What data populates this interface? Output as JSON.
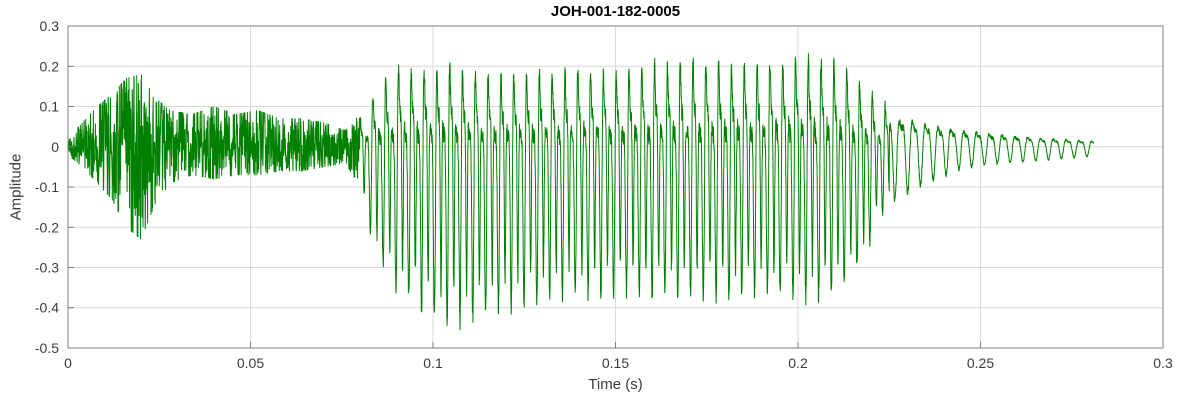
{
  "chart_data": {
    "type": "line",
    "title": "JOH-001-182-0005",
    "xlabel": "Time (s)",
    "ylabel": "Amplitude",
    "xlim": [
      0,
      0.3
    ],
    "ylim": [
      -0.5,
      0.3
    ],
    "x_ticks": [
      0,
      0.05,
      0.1,
      0.15,
      0.2,
      0.25,
      0.3
    ],
    "x_tick_labels": [
      "0",
      "0.05",
      "0.1",
      "0.15",
      "0.2",
      "0.25",
      "0.3"
    ],
    "y_ticks": [
      -0.5,
      -0.4,
      -0.3,
      -0.2,
      -0.1,
      0,
      0.1,
      0.2,
      0.3
    ],
    "y_tick_labels": [
      "-0.5",
      "-0.4",
      "-0.3",
      "-0.2",
      "-0.1",
      "0",
      "0.1",
      "0.2",
      "0.3"
    ],
    "grid": true,
    "legend": null,
    "line_color": "#008000",
    "signal": {
      "kind": "speech-waveform",
      "duration_s": 0.281,
      "f0_hz": 285,
      "segments": [
        {
          "type": "unvoiced-noise",
          "t_start": 0.0,
          "t_end": 0.08
        },
        {
          "type": "voiced-periodic",
          "t_start": 0.08,
          "t_end": 0.225
        },
        {
          "type": "decay-oscillation",
          "t_start": 0.225,
          "t_end": 0.281
        }
      ],
      "peak_positive": 0.22,
      "peak_negative": -0.44,
      "envelope": [
        [
          0.0,
          0.02,
          -0.02
        ],
        [
          0.004,
          0.06,
          -0.05
        ],
        [
          0.008,
          0.1,
          -0.09
        ],
        [
          0.012,
          0.13,
          -0.13
        ],
        [
          0.016,
          0.17,
          -0.2
        ],
        [
          0.02,
          0.18,
          -0.23
        ],
        [
          0.024,
          0.12,
          -0.14
        ],
        [
          0.028,
          0.09,
          -0.09
        ],
        [
          0.034,
          0.08,
          -0.07
        ],
        [
          0.04,
          0.1,
          -0.08
        ],
        [
          0.046,
          0.08,
          -0.07
        ],
        [
          0.052,
          0.09,
          -0.07
        ],
        [
          0.058,
          0.07,
          -0.06
        ],
        [
          0.064,
          0.07,
          -0.06
        ],
        [
          0.07,
          0.06,
          -0.05
        ],
        [
          0.076,
          0.04,
          -0.04
        ],
        [
          0.08,
          0.08,
          -0.1
        ],
        [
          0.084,
          0.13,
          -0.26
        ],
        [
          0.09,
          0.2,
          -0.35
        ],
        [
          0.096,
          0.19,
          -0.4
        ],
        [
          0.104,
          0.2,
          -0.44
        ],
        [
          0.112,
          0.18,
          -0.42
        ],
        [
          0.12,
          0.17,
          -0.4
        ],
        [
          0.13,
          0.18,
          -0.38
        ],
        [
          0.14,
          0.19,
          -0.37
        ],
        [
          0.15,
          0.18,
          -0.36
        ],
        [
          0.16,
          0.2,
          -0.37
        ],
        [
          0.17,
          0.21,
          -0.36
        ],
        [
          0.18,
          0.2,
          -0.38
        ],
        [
          0.19,
          0.21,
          -0.36
        ],
        [
          0.2,
          0.22,
          -0.37
        ],
        [
          0.206,
          0.22,
          -0.38
        ],
        [
          0.212,
          0.2,
          -0.35
        ],
        [
          0.218,
          0.15,
          -0.28
        ],
        [
          0.222,
          0.11,
          -0.18
        ],
        [
          0.226,
          0.1,
          -0.12
        ],
        [
          0.232,
          0.09,
          -0.09
        ],
        [
          0.238,
          0.07,
          -0.07
        ],
        [
          0.244,
          0.06,
          -0.05
        ],
        [
          0.25,
          0.05,
          -0.04
        ],
        [
          0.258,
          0.04,
          -0.035
        ],
        [
          0.266,
          0.03,
          -0.03
        ],
        [
          0.274,
          0.025,
          -0.025
        ],
        [
          0.281,
          0.02,
          -0.02
        ]
      ]
    }
  },
  "colors": {
    "line": "#008000",
    "grid": "#d9d9d9",
    "axis_box": "#7f7f7f",
    "tick_text": "#3b3b3b",
    "title_text": "#000000",
    "background": "#ffffff"
  }
}
